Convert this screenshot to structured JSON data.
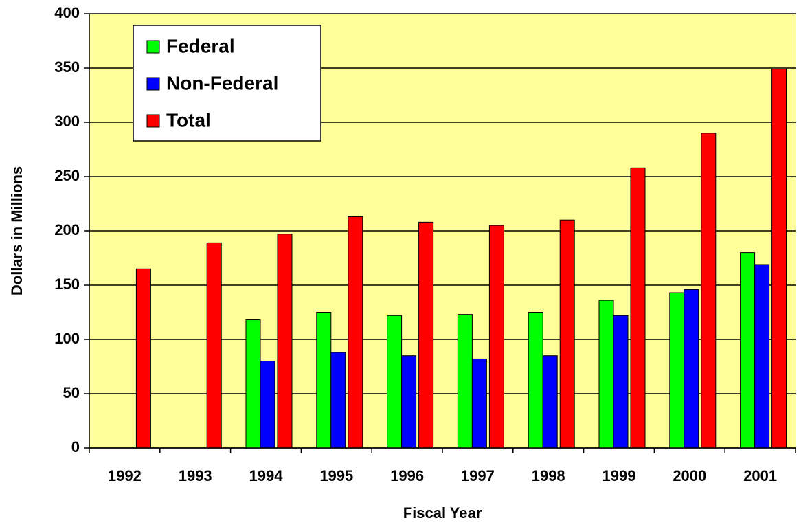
{
  "chart_data": {
    "type": "bar",
    "x_label": "Fiscal Year",
    "y_label": "Dollars in Millions",
    "categories": [
      "1992",
      "1993",
      "1994",
      "1995",
      "1996",
      "1997",
      "1998",
      "1999",
      "2000",
      "2001"
    ],
    "series": [
      {
        "name": "Federal",
        "color": "#00ff00",
        "values": [
          null,
          null,
          118,
          125,
          122,
          123,
          125,
          136,
          143,
          180
        ]
      },
      {
        "name": "Non-Federal",
        "color": "#0000ff",
        "values": [
          null,
          null,
          80,
          88,
          85,
          82,
          85,
          122,
          146,
          169
        ]
      },
      {
        "name": "Total",
        "color": "#ff0000",
        "values": [
          165,
          189,
          197,
          213,
          208,
          205,
          210,
          258,
          290,
          349
        ]
      }
    ],
    "ylim": [
      0,
      400
    ],
    "yticks": [
      0,
      50,
      100,
      150,
      200,
      250,
      300,
      350,
      400
    ],
    "grid": true,
    "legend": "upper left",
    "background": "#ffff99"
  }
}
